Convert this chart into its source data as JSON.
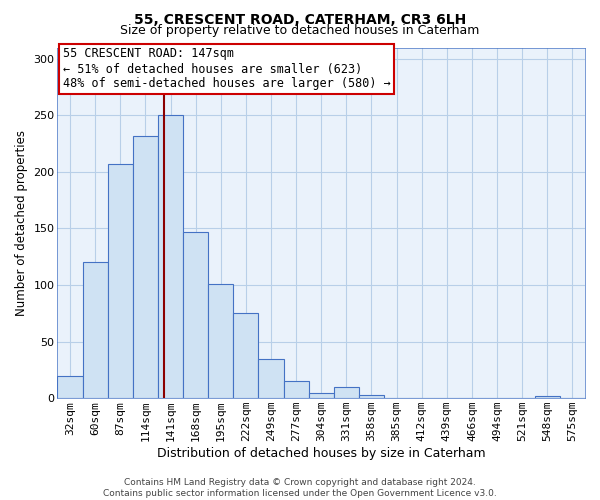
{
  "title": "55, CRESCENT ROAD, CATERHAM, CR3 6LH",
  "subtitle": "Size of property relative to detached houses in Caterham",
  "xlabel": "Distribution of detached houses by size in Caterham",
  "ylabel": "Number of detached properties",
  "bar_labels": [
    "32sqm",
    "60sqm",
    "87sqm",
    "114sqm",
    "141sqm",
    "168sqm",
    "195sqm",
    "222sqm",
    "249sqm",
    "277sqm",
    "304sqm",
    "331sqm",
    "358sqm",
    "385sqm",
    "412sqm",
    "439sqm",
    "466sqm",
    "494sqm",
    "521sqm",
    "548sqm",
    "575sqm"
  ],
  "bar_heights": [
    20,
    120,
    207,
    232,
    250,
    147,
    101,
    75,
    35,
    15,
    5,
    10,
    3,
    0,
    0,
    0,
    0,
    0,
    0,
    2,
    0
  ],
  "bar_color": "#cfe2f3",
  "bar_edge_color": "#4472c4",
  "vline_color": "#8b0000",
  "annotation_line1": "55 CRESCENT ROAD: 147sqm",
  "annotation_line2": "← 51% of detached houses are smaller (623)",
  "annotation_line3": "48% of semi-detached houses are larger (580) →",
  "annotation_box_edgecolor": "#cc0000",
  "ylim": [
    0,
    310
  ],
  "yticks": [
    0,
    50,
    100,
    150,
    200,
    250,
    300
  ],
  "title_fontsize": 10,
  "subtitle_fontsize": 9,
  "xlabel_fontsize": 9,
  "ylabel_fontsize": 8.5,
  "tick_fontsize": 8,
  "annotation_fontsize": 8.5,
  "footer_text": "Contains HM Land Registry data © Crown copyright and database right 2024.\nContains public sector information licensed under the Open Government Licence v3.0.",
  "footer_fontsize": 6.5,
  "background_color": "#ffffff",
  "plot_bg_color": "#eaf2fb",
  "grid_color": "#b8cfe8"
}
